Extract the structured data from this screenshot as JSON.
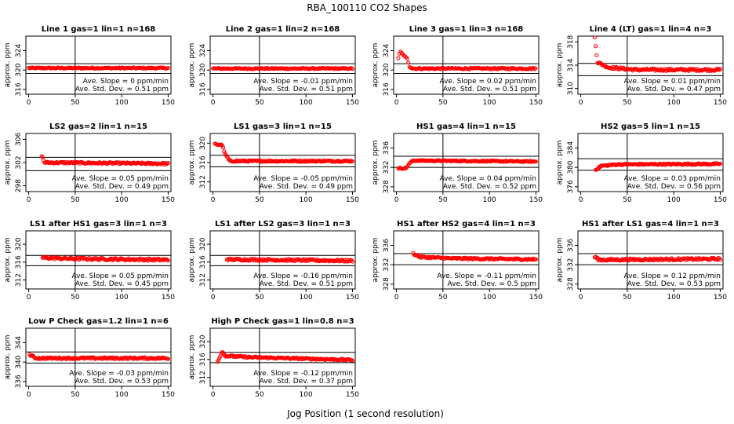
{
  "figure": {
    "title": "RBA_100110  CO2 Shapes",
    "xlabel": "Jog Position (1 second resolution)"
  },
  "chart_data": [
    {
      "type": "scatter",
      "title": "Line 1 gas=1 lin=1 n=168",
      "ylabel": "approx. ppm",
      "xlim": [
        -3,
        153
      ],
      "ylim": [
        315,
        327
      ],
      "xticks": [
        0,
        50,
        100,
        150
      ],
      "yticks": [
        316,
        320,
        324
      ],
      "hlines": [
        319.3,
        321.3
      ],
      "vline": 50,
      "slope_label": "Ave. Slope = 0  ppm/min",
      "std_label": "Ave. Std. Dev. = 0.51 ppm",
      "series": [
        {
          "name": "Line 1",
          "x_start": 0,
          "x_end": 150,
          "x_step": 1.2,
          "points": [
            [
              0,
              320.4
            ],
            [
              150,
              320.4
            ]
          ],
          "noise": 0.12
        }
      ]
    },
    {
      "type": "scatter",
      "title": "Line 2 gas=1 lin=2 n=168",
      "ylabel": "approx. ppm",
      "xlim": [
        -3,
        153
      ],
      "ylim": [
        315,
        327
      ],
      "xticks": [
        0,
        50,
        100,
        150
      ],
      "yticks": [
        316,
        320,
        324
      ],
      "hlines": [
        319.3,
        321.3
      ],
      "vline": 50,
      "slope_label": "Ave. Slope = -0.01  ppm/min",
      "std_label": "Ave. Std. Dev. = 0.51  ppm",
      "series": [
        {
          "name": "Line 2",
          "x_start": 0,
          "x_end": 150,
          "x_step": 1.2,
          "points": [
            [
              0,
              320.3
            ],
            [
              150,
              320.3
            ]
          ],
          "noise": 0.12
        }
      ]
    },
    {
      "type": "scatter",
      "title": "Line 3 gas=1 lin=3 n=168",
      "ylabel": "approx. ppm",
      "xlim": [
        -3,
        153
      ],
      "ylim": [
        315,
        327
      ],
      "xticks": [
        0,
        50,
        100,
        150
      ],
      "yticks": [
        316,
        320,
        324
      ],
      "hlines": [
        319.3,
        321.3
      ],
      "vline": 50,
      "slope_label": "Ave. Slope = 0.02  ppm/min",
      "std_label": "Ave. Std. Dev. = 0.51  ppm",
      "series": [
        {
          "name": "Line 3",
          "x_start": 2,
          "x_end": 150,
          "x_step": 1.2,
          "points": [
            [
              2,
              322.5
            ],
            [
              4,
              323.8
            ],
            [
              8,
              323.0
            ],
            [
              12,
              322.2
            ],
            [
              14,
              320.7
            ],
            [
              18,
              320.3
            ],
            [
              150,
              320.3
            ]
          ],
          "noise": 0.15
        }
      ]
    },
    {
      "type": "scatter",
      "title": "Line 4 (LT) gas=1 lin=4 n=3",
      "ylabel": "approx. ppm",
      "xlim": [
        -3,
        153
      ],
      "ylim": [
        309,
        319
      ],
      "xticks": [
        0,
        50,
        100,
        150
      ],
      "yticks": [
        310,
        314,
        318
      ],
      "hlines": [
        312.2,
        314.3
      ],
      "vline": 50,
      "slope_label": "Ave. Slope = 0.01  ppm/min",
      "std_label": "Ave. Std. Dev. = 0.47  ppm",
      "series": [
        {
          "name": "Line 4 (LT)",
          "x_start": 15,
          "x_end": 150,
          "x_step": 1.0,
          "points": [
            [
              15,
              318.7
            ],
            [
              18,
              314.5
            ],
            [
              30,
              313.6
            ],
            [
              60,
              313.2
            ],
            [
              150,
              313.2
            ]
          ],
          "noise": 0.2
        }
      ]
    },
    {
      "type": "scatter",
      "title": "LS2 gas=2 lin=1 n=15",
      "ylabel": "approx. ppm",
      "xlim": [
        -3,
        153
      ],
      "ylim": [
        297,
        307
      ],
      "xticks": [
        0,
        50,
        100,
        150
      ],
      "yticks": [
        298,
        302,
        306
      ],
      "hlines": [
        300.6,
        302.9
      ],
      "vline": 50,
      "slope_label": "Ave. Slope = 0.05  ppm/min",
      "std_label": "Ave. Std. Dev. = 0.49  ppm",
      "series": [
        {
          "name": "LS2",
          "x_start": 14,
          "x_end": 150,
          "x_step": 1.0,
          "points": [
            [
              14,
              303.2
            ],
            [
              17,
              302.0
            ],
            [
              150,
              301.8
            ]
          ],
          "noise": 0.15
        }
      ]
    },
    {
      "type": "scatter",
      "title": "LS1 gas=3 lin=1 n=15",
      "ylabel": "approx. ppm",
      "xlim": [
        -3,
        153
      ],
      "ylim": [
        310,
        322
      ],
      "xticks": [
        0,
        50,
        100,
        150
      ],
      "yticks": [
        312,
        316,
        320
      ],
      "hlines": [
        315.1,
        317.5
      ],
      "vline": 50,
      "slope_label": "Ave. Slope = -0.05  ppm/min",
      "std_label": "Ave. Std. Dev. = 0.49  ppm",
      "series": [
        {
          "name": "LS1",
          "x_start": 2,
          "x_end": 150,
          "x_step": 1.0,
          "points": [
            [
              2,
              319.8
            ],
            [
              10,
              319.6
            ],
            [
              13,
              317.8
            ],
            [
              18,
              316.3
            ],
            [
              150,
              316.3
            ]
          ],
          "noise": 0.15
        }
      ]
    },
    {
      "type": "scatter",
      "title": "HS1 gas=4 lin=1 n=15",
      "ylabel": "approx. ppm",
      "xlim": [
        -3,
        153
      ],
      "ylim": [
        327,
        339
      ],
      "xticks": [
        0,
        50,
        100,
        150
      ],
      "yticks": [
        328,
        332,
        336
      ],
      "hlines": [
        332.0,
        334.3
      ],
      "vline": 50,
      "slope_label": "Ave. Slope = 0.04  ppm/min",
      "std_label": "Ave. Std. Dev. = 0.52  ppm",
      "series": [
        {
          "name": "HS1",
          "x_start": 2,
          "x_end": 150,
          "x_step": 1.0,
          "points": [
            [
              2,
              331.8
            ],
            [
              10,
              331.8
            ],
            [
              15,
              333.0
            ],
            [
              18,
              333.4
            ],
            [
              150,
              333.2
            ]
          ],
          "noise": 0.12
        }
      ]
    },
    {
      "type": "scatter",
      "title": "HS2 gas=5 lin=1 n=15",
      "ylabel": "approx. ppm",
      "xlim": [
        -3,
        153
      ],
      "ylim": [
        375,
        387
      ],
      "xticks": [
        0,
        50,
        100,
        150
      ],
      "yticks": [
        376,
        380,
        384
      ],
      "hlines": [
        379.4,
        381.8
      ],
      "vline": 50,
      "slope_label": "Ave. Slope = 0.03  ppm/min",
      "std_label": "Ave. Std. Dev. = 0.56  ppm",
      "series": [
        {
          "name": "HS2",
          "x_start": 16,
          "x_end": 150,
          "x_step": 1.0,
          "points": [
            [
              16,
              379.5
            ],
            [
              22,
              380.3
            ],
            [
              40,
              380.6
            ],
            [
              150,
              380.7
            ]
          ],
          "noise": 0.15
        }
      ]
    },
    {
      "type": "scatter",
      "title": "LS1 after HS1 gas=3 lin=1 n=3",
      "ylabel": "approx. ppm",
      "xlim": [
        -3,
        153
      ],
      "ylim": [
        310,
        323
      ],
      "xticks": [
        0,
        50,
        100,
        150
      ],
      "yticks": [
        312,
        316,
        320
      ],
      "hlines": [
        315.2,
        317.5
      ],
      "vline": 50,
      "slope_label": "Ave. Slope = 0.05  ppm/min",
      "std_label": "Ave. Std. Dev. = 0.45  ppm",
      "series": [
        {
          "name": "LS1 after HS1",
          "x_start": 15,
          "x_end": 150,
          "x_step": 1.0,
          "points": [
            [
              15,
              317.0
            ],
            [
              40,
              316.8
            ],
            [
              150,
              316.5
            ]
          ],
          "noise": 0.25
        }
      ]
    },
    {
      "type": "scatter",
      "title": "LS1 after LS2 gas=3 lin=1 n=3",
      "ylabel": "approx. ppm",
      "xlim": [
        -3,
        153
      ],
      "ylim": [
        310,
        323
      ],
      "xticks": [
        0,
        50,
        100,
        150
      ],
      "yticks": [
        312,
        316,
        320
      ],
      "hlines": [
        315.2,
        317.5
      ],
      "vline": 50,
      "slope_label": "Ave. Slope = -0.16  ppm/min",
      "std_label": "Ave. Std. Dev. = 0.51  ppm",
      "series": [
        {
          "name": "LS1 after LS2",
          "x_start": 15,
          "x_end": 150,
          "x_step": 1.0,
          "points": [
            [
              15,
              316.6
            ],
            [
              150,
              316.3
            ]
          ],
          "noise": 0.22
        }
      ]
    },
    {
      "type": "scatter",
      "title": "HS1 after HS2 gas=4 lin=1 n=3",
      "ylabel": "approx. ppm",
      "xlim": [
        -3,
        153
      ],
      "ylim": [
        327,
        339
      ],
      "xticks": [
        0,
        50,
        100,
        150
      ],
      "yticks": [
        328,
        332,
        336
      ],
      "hlines": [
        332.0,
        334.3
      ],
      "vline": 50,
      "slope_label": "Ave. Slope = -0.11  ppm/min",
      "std_label": "Ave. Std. Dev. = 0.5  ppm",
      "series": [
        {
          "name": "HS1 after HS2",
          "x_start": 18,
          "x_end": 150,
          "x_step": 1.0,
          "points": [
            [
              18,
              334.3
            ],
            [
              25,
              333.6
            ],
            [
              60,
              333.3
            ],
            [
              150,
              333.1
            ]
          ],
          "noise": 0.18
        }
      ]
    },
    {
      "type": "scatter",
      "title": "HS1 after LS1 gas=4 lin=1 n=3",
      "ylabel": "approx. ppm",
      "xlim": [
        -3,
        153
      ],
      "ylim": [
        327,
        339
      ],
      "xticks": [
        0,
        50,
        100,
        150
      ],
      "yticks": [
        328,
        332,
        336
      ],
      "hlines": [
        332.0,
        334.3
      ],
      "vline": 50,
      "slope_label": "Ave. Slope = 0.12  ppm/min",
      "std_label": "Ave. Std. Dev. = 0.53  ppm",
      "series": [
        {
          "name": "HS1 after LS1",
          "x_start": 15,
          "x_end": 150,
          "x_step": 1.0,
          "points": [
            [
              15,
              333.6
            ],
            [
              20,
              333.0
            ],
            [
              150,
              333.2
            ]
          ],
          "noise": 0.22
        }
      ]
    },
    {
      "type": "scatter",
      "title": "Low P Check gas=1.2 lin=1 n=6",
      "ylabel": "approx. ppm",
      "xlim": [
        -3,
        153
      ],
      "ylim": [
        335,
        347
      ],
      "xticks": [
        0,
        50,
        100,
        150
      ],
      "yticks": [
        336,
        340,
        344
      ],
      "hlines": [
        339.8,
        342.1
      ],
      "vline": 50,
      "slope_label": "Ave. Slope = -0.03  ppm/min",
      "std_label": "Ave. Std. Dev. = 0.53  ppm",
      "series": [
        {
          "name": "Low P Check",
          "x_start": 1,
          "x_end": 150,
          "x_step": 1.0,
          "points": [
            [
              1,
              341.5
            ],
            [
              8,
              340.8
            ],
            [
              150,
              340.8
            ]
          ],
          "noise": 0.18
        }
      ]
    },
    {
      "type": "scatter",
      "title": "High P Check gas=1 lin=0.8 n=3",
      "ylabel": "approx. ppm",
      "xlim": [
        -3,
        153
      ],
      "ylim": [
        310,
        323
      ],
      "xticks": [
        0,
        50,
        100,
        150
      ],
      "yticks": [
        312,
        316,
        320
      ],
      "hlines": [
        315.3,
        317.6
      ],
      "vline": 50,
      "slope_label": "Ave. Slope = -0.12  ppm/min",
      "std_label": "Ave. Std. Dev. = 0.37  ppm",
      "series": [
        {
          "name": "High P Check",
          "x_start": 5,
          "x_end": 150,
          "x_step": 1.0,
          "points": [
            [
              5,
              315.5
            ],
            [
              10,
              317.8
            ],
            [
              13,
              316.8
            ],
            [
              40,
              316.5
            ],
            [
              150,
              315.9
            ]
          ],
          "noise": 0.18
        }
      ]
    }
  ],
  "colors": {
    "point": "#ff0000",
    "axes": "#000000",
    "background": "#ffffff"
  }
}
